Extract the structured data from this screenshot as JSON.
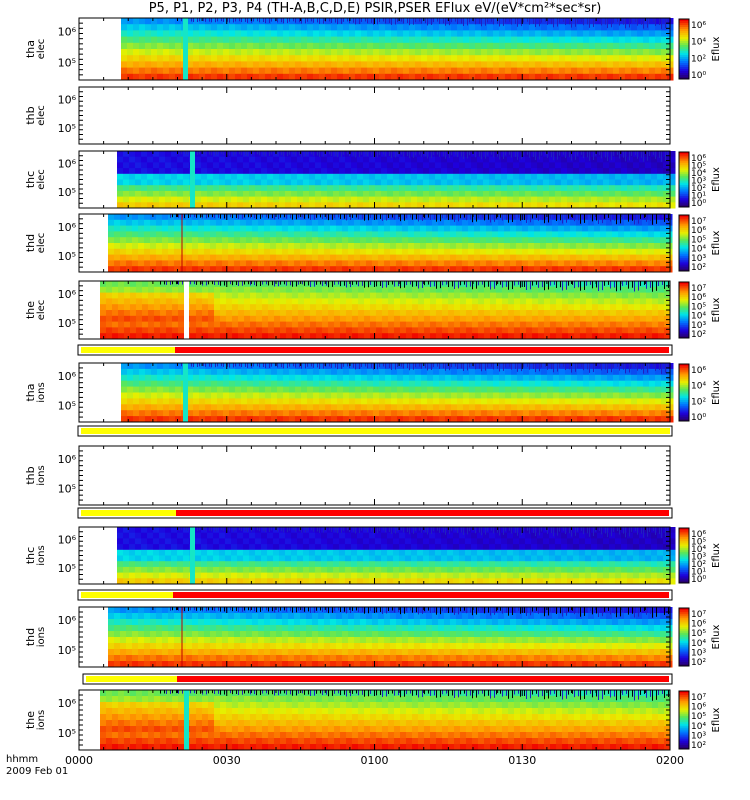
{
  "title": "P5, P1, P2, P3, P4 (TH-A,B,C,D,E) PSIR,PSER EFlux eV/(eV*cm²*sec*sr)",
  "time_axis": {
    "label_row1": "hhmm",
    "label_row2": "2009 Feb 01",
    "ticks": [
      "0000",
      "0030",
      "0100",
      "0130",
      "0200"
    ]
  },
  "chart_data": [
    {
      "type": "heatmap",
      "panel": "tha-elec",
      "ylabel": [
        "tha",
        "elec"
      ],
      "ytick_labels": [
        "10⁶",
        "10⁵"
      ],
      "colorbar_label": "Eflux",
      "colorbar_ticks": [
        "10⁶",
        "10⁴",
        "10²",
        "10⁰"
      ]
    },
    {
      "type": "heatmap",
      "panel": "thb-elec",
      "ylabel": [
        "thb",
        "elec"
      ],
      "ytick_labels": [
        "10⁶",
        "10⁵"
      ],
      "empty": true
    },
    {
      "type": "heatmap",
      "panel": "thc-elec",
      "ylabel": [
        "thc",
        "elec"
      ],
      "ytick_labels": [
        "10⁶",
        "10⁵"
      ],
      "colorbar_label": "Eflux",
      "colorbar_ticks": [
        "10⁶",
        "10⁵",
        "10⁴",
        "10³",
        "10²",
        "10¹",
        "10⁰"
      ]
    },
    {
      "type": "heatmap",
      "panel": "thd-elec",
      "ylabel": [
        "thd",
        "elec"
      ],
      "ytick_labels": [
        "10⁶",
        "10⁵"
      ],
      "colorbar_label": "Eflux",
      "colorbar_ticks": [
        "10⁷",
        "10⁶",
        "10⁵",
        "10⁴",
        "10³",
        "10²"
      ]
    },
    {
      "type": "heatmap",
      "panel": "the-elec",
      "ylabel": [
        "the",
        "elec"
      ],
      "ytick_labels": [
        "10⁶",
        "10⁵"
      ],
      "colorbar_label": "Eflux",
      "colorbar_ticks": [
        "10⁷",
        "10⁶",
        "10⁵",
        "10⁴",
        "10³",
        "10²"
      ]
    },
    {
      "type": "heatmap",
      "panel": "tha-ions",
      "ylabel": [
        "tha",
        "ions"
      ],
      "ytick_labels": [
        "10⁶",
        "10⁵"
      ],
      "colorbar_label": "Eflux",
      "colorbar_ticks": [
        "10⁶",
        "10⁴",
        "10²",
        "10⁰"
      ]
    },
    {
      "type": "heatmap",
      "panel": "thb-ions",
      "ylabel": [
        "thb",
        "ions"
      ],
      "ytick_labels": [
        "10⁶",
        "10⁵"
      ],
      "empty": true
    },
    {
      "type": "heatmap",
      "panel": "thc-ions",
      "ylabel": [
        "thc",
        "ions"
      ],
      "ytick_labels": [
        "10⁶",
        "10⁵"
      ],
      "colorbar_label": "Eflux",
      "colorbar_ticks": [
        "10⁶",
        "10⁵",
        "10⁴",
        "10³",
        "10²",
        "10¹",
        "10⁰"
      ]
    },
    {
      "type": "heatmap",
      "panel": "thd-ions",
      "ylabel": [
        "thd",
        "ions"
      ],
      "ytick_labels": [
        "10⁶",
        "10⁵"
      ],
      "colorbar_label": "Eflux",
      "colorbar_ticks": [
        "10⁷",
        "10⁶",
        "10⁵",
        "10⁴",
        "10³",
        "10²"
      ]
    },
    {
      "type": "heatmap",
      "panel": "the-ions",
      "ylabel": [
        "the",
        "ions"
      ],
      "ytick_labels": [
        "10⁶",
        "10⁵"
      ],
      "colorbar_label": "Eflux",
      "colorbar_ticks": [
        "10⁷",
        "10⁶",
        "10⁵",
        "10⁴",
        "10³",
        "10²"
      ]
    }
  ],
  "colors": {
    "bar_yellow": "#ffff00",
    "bar_red": "#ff0000"
  }
}
